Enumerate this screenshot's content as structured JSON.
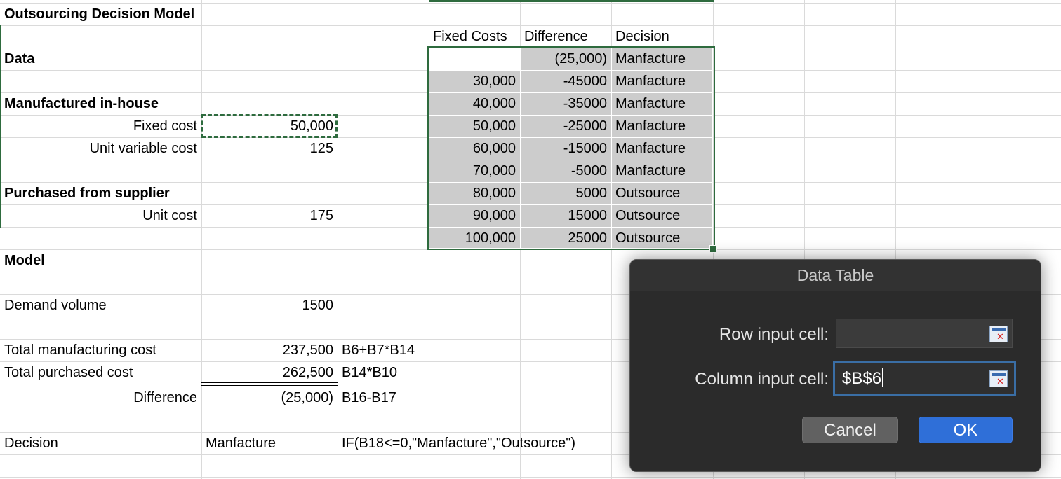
{
  "sheet": {
    "title": "Outsourcing Decision Model",
    "data_label": "Data",
    "manufactured_label": "Manufactured in-house",
    "fixed_cost_label": "Fixed cost",
    "fixed_cost_value": "50,000",
    "unit_variable_cost_label": "Unit variable cost",
    "unit_variable_cost_value": "125",
    "purchased_label": "Purchased from supplier",
    "unit_cost_label": "Unit cost",
    "unit_cost_value": "175",
    "model_label": "Model",
    "demand_label": "Demand volume",
    "demand_value": "1500",
    "total_mfg_label": "Total manufacturing cost",
    "total_mfg_value": "237,500",
    "total_mfg_formula": "B6+B7*B14",
    "total_purch_label": "Total purchased cost",
    "total_purch_value": "262,500",
    "total_purch_formula": "B14*B10",
    "difference_label": "Difference",
    "difference_value": "(25,000)",
    "difference_formula": "B16-B17",
    "decision_label": "Decision",
    "decision_value": "Manfacture",
    "decision_formula": "IF(B18<=0,\"Manfacture\",\"Outsource\")"
  },
  "data_table": {
    "headers": [
      "Fixed Costs",
      "Difference",
      "Decision"
    ],
    "first_row": {
      "difference": "(25,000)",
      "decision": "Manfacture"
    },
    "rows": [
      {
        "fixed": "30,000",
        "difference": "-45000",
        "decision": "Manfacture"
      },
      {
        "fixed": "40,000",
        "difference": "-35000",
        "decision": "Manfacture"
      },
      {
        "fixed": "50,000",
        "difference": "-25000",
        "decision": "Manfacture"
      },
      {
        "fixed": "60,000",
        "difference": "-15000",
        "decision": "Manfacture"
      },
      {
        "fixed": "70,000",
        "difference": "-5000",
        "decision": "Manfacture"
      },
      {
        "fixed": "80,000",
        "difference": "5000",
        "decision": "Outsource"
      },
      {
        "fixed": "90,000",
        "difference": "15000",
        "decision": "Outsource"
      },
      {
        "fixed": "100,000",
        "difference": "25000",
        "decision": "Outsource"
      }
    ]
  },
  "dialog": {
    "title": "Data Table",
    "row_input_label": "Row input cell:",
    "row_input_value": "",
    "column_input_label": "Column input cell:",
    "column_input_value": "$B$6",
    "cancel_label": "Cancel",
    "ok_label": "OK",
    "collapse_icon": "range-select-icon"
  },
  "colors": {
    "selection": "#2e6b3e",
    "shade": "#cccccc",
    "dialog_bg": "#2b2b2b",
    "ok_button": "#2f6fd8",
    "focus_ring": "#3a6ea5"
  }
}
